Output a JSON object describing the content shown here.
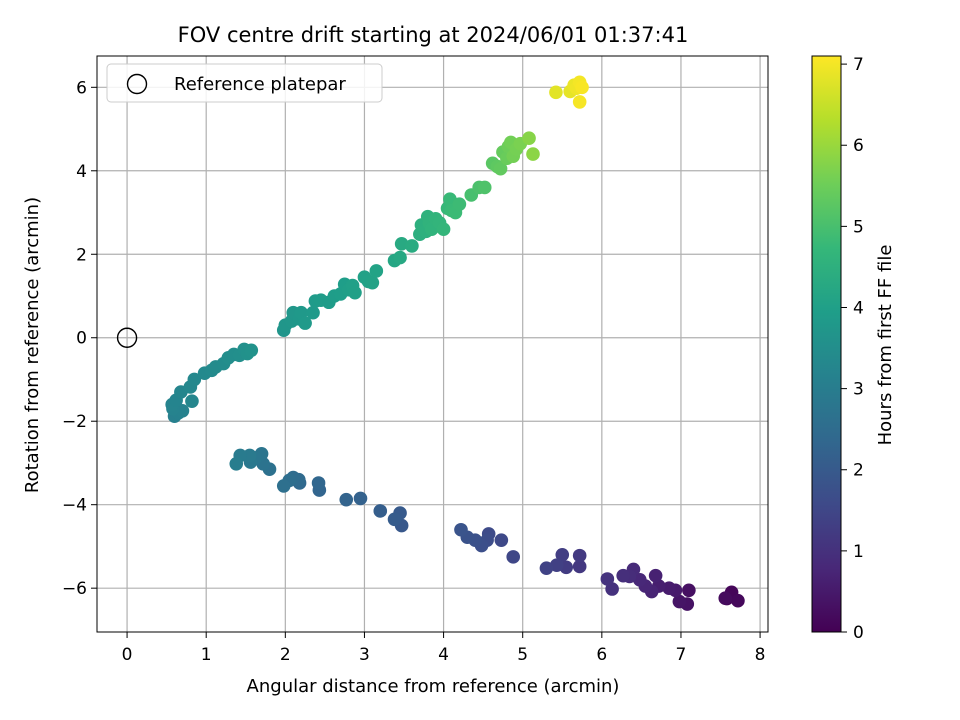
{
  "chart_data": {
    "type": "scatter",
    "title": "FOV centre drift starting at 2024/06/01 01:37:41",
    "xlabel": "Angular distance from reference (arcmin)",
    "ylabel": "Rotation from reference (arcmin)",
    "xlim": [
      -0.38,
      8.1
    ],
    "ylim": [
      -7.05,
      6.75
    ],
    "x_ticks": [
      0,
      1,
      2,
      3,
      4,
      5,
      6,
      7,
      8
    ],
    "y_ticks": [
      -6,
      -4,
      -2,
      0,
      2,
      4,
      6
    ],
    "grid": true,
    "legend": {
      "position": "top-left",
      "entries": [
        "Reference platepar"
      ]
    },
    "reference_point": {
      "x": 0,
      "y": 0,
      "name": "Reference platepar"
    },
    "colorbar": {
      "label": "Hours from first FF file",
      "colormap": "viridis",
      "range": [
        0,
        7.1
      ],
      "ticks": [
        0,
        1,
        2,
        3,
        4,
        5,
        6,
        7
      ]
    },
    "points": [
      [
        7.58,
        -6.25,
        0.05
      ],
      [
        7.64,
        -6.1,
        0.1
      ],
      [
        7.72,
        -6.3,
        0.15
      ],
      [
        7.56,
        -6.24,
        0.2
      ],
      [
        7.1,
        -6.05,
        0.3
      ],
      [
        7.08,
        -6.38,
        0.35
      ],
      [
        6.98,
        -6.32,
        0.4
      ],
      [
        6.93,
        -6.05,
        0.5
      ],
      [
        6.85,
        -6.0,
        0.55
      ],
      [
        6.72,
        -5.95,
        0.6
      ],
      [
        6.68,
        -5.7,
        0.65
      ],
      [
        6.63,
        -6.08,
        0.7
      ],
      [
        6.55,
        -5.95,
        0.75
      ],
      [
        6.48,
        -5.8,
        0.8
      ],
      [
        6.4,
        -5.55,
        0.85
      ],
      [
        6.35,
        -5.72,
        0.9
      ],
      [
        6.27,
        -5.7,
        0.95
      ],
      [
        6.13,
        -6.02,
        1.0
      ],
      [
        6.07,
        -5.78,
        1.05
      ],
      [
        5.72,
        -5.48,
        1.15
      ],
      [
        5.72,
        -5.22,
        1.2
      ],
      [
        5.55,
        -5.5,
        1.25
      ],
      [
        5.5,
        -5.2,
        1.3
      ],
      [
        5.43,
        -5.45,
        1.35
      ],
      [
        5.3,
        -5.52,
        1.4
      ],
      [
        4.88,
        -5.25,
        1.5
      ],
      [
        4.73,
        -4.85,
        1.55
      ],
      [
        4.57,
        -4.7,
        1.6
      ],
      [
        4.55,
        -4.85,
        1.65
      ],
      [
        4.48,
        -4.98,
        1.7
      ],
      [
        4.4,
        -4.85,
        1.75
      ],
      [
        4.3,
        -4.78,
        1.8
      ],
      [
        4.22,
        -4.6,
        1.85
      ],
      [
        3.47,
        -4.5,
        1.95
      ],
      [
        3.45,
        -4.2,
        2.0
      ],
      [
        3.38,
        -4.35,
        2.05
      ],
      [
        3.2,
        -4.15,
        2.1
      ],
      [
        2.95,
        -3.85,
        2.2
      ],
      [
        2.77,
        -3.88,
        2.25
      ],
      [
        2.43,
        -3.65,
        2.3
      ],
      [
        2.42,
        -3.48,
        2.35
      ],
      [
        2.18,
        -3.48,
        2.4
      ],
      [
        2.17,
        -3.4,
        2.45
      ],
      [
        2.1,
        -3.35,
        2.5
      ],
      [
        2.05,
        -3.42,
        2.55
      ],
      [
        1.98,
        -3.55,
        2.6
      ],
      [
        1.8,
        -3.15,
        2.65
      ],
      [
        1.72,
        -3.02,
        2.7
      ],
      [
        1.7,
        -2.78,
        2.75
      ],
      [
        1.62,
        -2.88,
        2.8
      ],
      [
        1.56,
        -2.98,
        2.85
      ],
      [
        1.55,
        -2.82,
        2.9
      ],
      [
        1.43,
        -2.82,
        2.95
      ],
      [
        1.38,
        -3.02,
        3.0
      ],
      [
        0.6,
        -1.88,
        3.1
      ],
      [
        0.65,
        -1.8,
        3.12
      ],
      [
        0.7,
        -1.75,
        3.15
      ],
      [
        0.58,
        -1.7,
        3.18
      ],
      [
        0.57,
        -1.6,
        3.2
      ],
      [
        0.62,
        -1.5,
        3.22
      ],
      [
        0.68,
        -1.3,
        3.25
      ],
      [
        0.82,
        -1.52,
        3.28
      ],
      [
        0.8,
        -1.18,
        3.3
      ],
      [
        0.85,
        -1.0,
        3.33
      ],
      [
        0.98,
        -0.85,
        3.36
      ],
      [
        1.07,
        -0.78,
        3.39
      ],
      [
        1.12,
        -0.7,
        3.42
      ],
      [
        1.22,
        -0.62,
        3.45
      ],
      [
        1.28,
        -0.48,
        3.48
      ],
      [
        1.35,
        -0.4,
        3.5
      ],
      [
        1.42,
        -0.42,
        3.52
      ],
      [
        1.48,
        -0.28,
        3.55
      ],
      [
        1.52,
        -0.38,
        3.58
      ],
      [
        1.57,
        -0.3,
        3.6
      ],
      [
        1.98,
        0.18,
        3.7
      ],
      [
        2.0,
        0.3,
        3.72
      ],
      [
        2.08,
        0.4,
        3.74
      ],
      [
        2.1,
        0.6,
        3.76
      ],
      [
        2.18,
        0.45,
        3.78
      ],
      [
        2.2,
        0.6,
        3.8
      ],
      [
        2.25,
        0.35,
        3.82
      ],
      [
        2.35,
        0.6,
        3.84
      ],
      [
        2.38,
        0.88,
        3.86
      ],
      [
        2.45,
        0.9,
        3.88
      ],
      [
        2.55,
        0.85,
        3.9
      ],
      [
        2.62,
        1.0,
        3.92
      ],
      [
        2.7,
        1.05,
        3.94
      ],
      [
        2.75,
        1.28,
        3.96
      ],
      [
        2.8,
        1.15,
        3.98
      ],
      [
        2.85,
        1.25,
        4.0
      ],
      [
        2.88,
        1.08,
        4.02
      ],
      [
        3.0,
        1.45,
        4.04
      ],
      [
        3.05,
        1.35,
        4.06
      ],
      [
        3.1,
        1.32,
        4.08
      ],
      [
        3.15,
        1.6,
        4.1
      ],
      [
        3.38,
        1.85,
        4.2
      ],
      [
        3.45,
        1.92,
        4.25
      ],
      [
        3.47,
        2.25,
        4.3
      ],
      [
        3.6,
        2.2,
        4.35
      ],
      [
        3.7,
        2.48,
        4.45
      ],
      [
        3.72,
        2.7,
        4.48
      ],
      [
        3.78,
        2.55,
        4.5
      ],
      [
        3.8,
        2.9,
        4.55
      ],
      [
        3.82,
        2.75,
        4.58
      ],
      [
        3.85,
        2.6,
        4.6
      ],
      [
        3.9,
        2.85,
        4.62
      ],
      [
        3.95,
        2.75,
        4.65
      ],
      [
        4.0,
        2.6,
        4.68
      ],
      [
        4.05,
        3.1,
        4.75
      ],
      [
        4.08,
        3.32,
        4.78
      ],
      [
        4.1,
        3.05,
        4.8
      ],
      [
        4.15,
        3.0,
        4.82
      ],
      [
        4.2,
        3.2,
        4.85
      ],
      [
        4.35,
        3.42,
        5.0
      ],
      [
        4.45,
        3.6,
        5.05
      ],
      [
        4.52,
        3.6,
        5.1
      ],
      [
        4.62,
        4.18,
        5.25
      ],
      [
        4.68,
        4.1,
        5.3
      ],
      [
        4.72,
        4.05,
        5.35
      ],
      [
        4.75,
        4.45,
        5.4
      ],
      [
        4.8,
        4.3,
        5.45
      ],
      [
        4.82,
        4.58,
        5.5
      ],
      [
        4.85,
        4.68,
        5.55
      ],
      [
        4.88,
        4.35,
        5.58
      ],
      [
        4.92,
        4.52,
        5.6
      ],
      [
        4.97,
        4.65,
        5.65
      ],
      [
        5.08,
        4.78,
        5.8
      ],
      [
        5.13,
        4.4,
        5.85
      ],
      [
        5.42,
        5.88,
        6.8
      ],
      [
        5.6,
        5.9,
        6.85
      ],
      [
        5.65,
        6.05,
        6.9
      ],
      [
        5.68,
        5.98,
        6.95
      ],
      [
        5.72,
        6.12,
        7.0
      ],
      [
        5.72,
        5.65,
        7.02
      ],
      [
        5.75,
        6.0,
        7.05
      ]
    ]
  }
}
